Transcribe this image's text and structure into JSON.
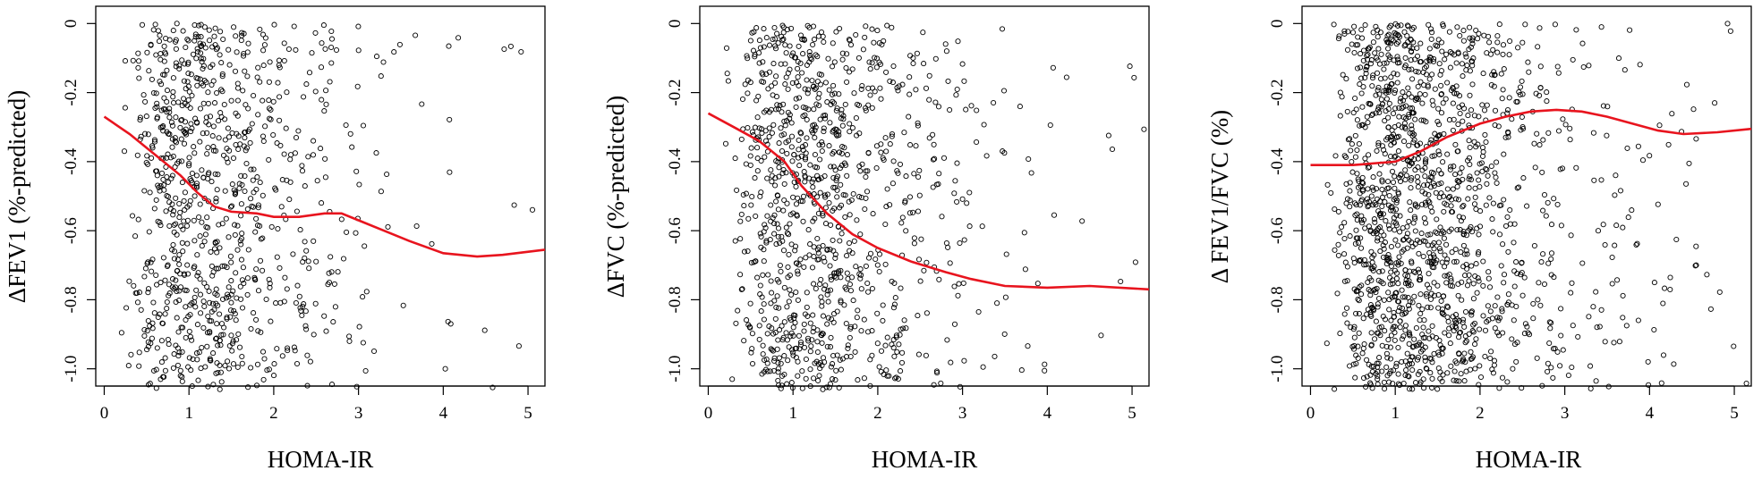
{
  "colors": {
    "points": "#000000",
    "smooth": "#e8141e",
    "axis": "#000000"
  },
  "chart_data": [
    {
      "type": "scatter",
      "title": "",
      "xlabel": "HOMA-IR",
      "ylabel": "ΔFEV1 (%-predicted)",
      "xlim": [
        -0.1,
        5.2
      ],
      "ylim": [
        -1.05,
        0.05
      ],
      "x_ticks": [
        "0",
        "1",
        "2",
        "3",
        "4",
        "5"
      ],
      "y_ticks": [
        "0",
        "-0.2",
        "-0.4",
        "-0.6",
        "-0.8",
        "-1.0"
      ],
      "scatter_points_approx": 900,
      "smooth_series": {
        "x": [
          0.0,
          0.3,
          0.6,
          0.9,
          1.1,
          1.3,
          1.5,
          1.8,
          2.0,
          2.3,
          2.6,
          2.8,
          3.0,
          3.3,
          3.6,
          4.0,
          4.4,
          4.7,
          5.2
        ],
        "y": [
          -0.27,
          -0.32,
          -0.38,
          -0.44,
          -0.49,
          -0.53,
          -0.545,
          -0.55,
          -0.56,
          -0.56,
          -0.55,
          -0.55,
          -0.57,
          -0.6,
          -0.63,
          -0.665,
          -0.675,
          -0.67,
          -0.655
        ]
      }
    },
    {
      "type": "scatter",
      "title": "",
      "xlabel": "HOMA-IR",
      "ylabel": "ΔFVC (%-predicted)",
      "xlim": [
        -0.1,
        5.2
      ],
      "ylim": [
        -1.05,
        0.05
      ],
      "x_ticks": [
        "0",
        "1",
        "2",
        "3",
        "4",
        "5"
      ],
      "y_ticks": [
        "0",
        "-0.2",
        "-0.4",
        "-0.6",
        "-0.8",
        "-1.0"
      ],
      "scatter_points_approx": 1000,
      "smooth_series": {
        "x": [
          0.0,
          0.3,
          0.6,
          0.9,
          1.1,
          1.4,
          1.7,
          2.0,
          2.4,
          2.8,
          3.1,
          3.5,
          4.0,
          4.5,
          5.2
        ],
        "y": [
          -0.26,
          -0.3,
          -0.34,
          -0.4,
          -0.47,
          -0.55,
          -0.61,
          -0.65,
          -0.69,
          -0.72,
          -0.74,
          -0.76,
          -0.765,
          -0.76,
          -0.77
        ]
      }
    },
    {
      "type": "scatter",
      "title": "",
      "xlabel": "HOMA-IR",
      "ylabel": "Δ FEV1/FVC (%)",
      "xlim": [
        -0.1,
        5.2
      ],
      "ylim": [
        -1.05,
        0.05
      ],
      "x_ticks": [
        "0",
        "1",
        "2",
        "3",
        "4",
        "5"
      ],
      "y_ticks": [
        "0",
        "-0.2",
        "-0.4",
        "-0.6",
        "-0.8",
        "-1.0"
      ],
      "scatter_points_approx": 1500,
      "smooth_series": {
        "x": [
          0.0,
          0.5,
          1.0,
          1.3,
          1.6,
          2.0,
          2.3,
          2.6,
          2.9,
          3.2,
          3.5,
          3.8,
          4.1,
          4.4,
          4.8,
          5.2
        ],
        "y": [
          -0.41,
          -0.41,
          -0.4,
          -0.37,
          -0.33,
          -0.29,
          -0.27,
          -0.255,
          -0.25,
          -0.255,
          -0.27,
          -0.29,
          -0.31,
          -0.32,
          -0.315,
          -0.305
        ]
      }
    }
  ]
}
